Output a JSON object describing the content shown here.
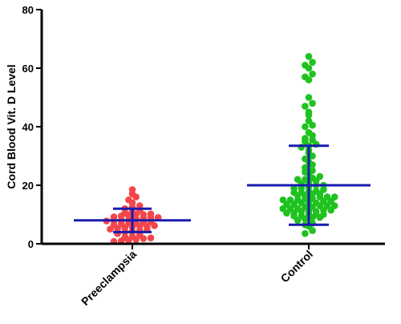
{
  "chart_data": {
    "type": "scatter",
    "ylabel": "Cord Blood Vit. D Level",
    "xlabel": "",
    "ylim": [
      0,
      80
    ],
    "yticks": [
      0,
      20,
      40,
      60,
      80
    ],
    "grid": false,
    "categories": [
      "Preeclampsia",
      "Control"
    ],
    "series": [
      {
        "category": "Preeclampsia",
        "color": "#f2464b",
        "mean": 8,
        "sd_low": 4,
        "sd_high": 12,
        "values": [
          0.8,
          1.0,
          1.2,
          1.5,
          1.8,
          2.0,
          2.2,
          2.5,
          3.0,
          3.5,
          4.0,
          4.2,
          4.5,
          4.8,
          5.0,
          5.2,
          5.5,
          5.8,
          6.0,
          6.0,
          6.2,
          6.5,
          6.8,
          7.0,
          7.0,
          7.2,
          7.5,
          7.8,
          8.0,
          8.0,
          8.2,
          8.5,
          8.8,
          9.0,
          9.0,
          9.2,
          9.5,
          9.8,
          10.0,
          10.0,
          10.2,
          10.5,
          11.0,
          11.5,
          12.0,
          12.5,
          13.0,
          14.0,
          15.0,
          16.0,
          17.0,
          18.5
        ]
      },
      {
        "category": "Control",
        "color": "#1fc21f",
        "mean": 20,
        "sd_low": 6.5,
        "sd_high": 33.5,
        "values": [
          3.5,
          4.5,
          6.0,
          6.5,
          7.0,
          8.0,
          8.5,
          9.0,
          9.0,
          9.5,
          9.5,
          10.0,
          10.0,
          10.0,
          10.5,
          10.5,
          11.0,
          11.0,
          11.0,
          11.5,
          11.5,
          12.0,
          12.0,
          12.0,
          12.5,
          12.5,
          13.0,
          13.0,
          13.0,
          13.5,
          13.5,
          14.0,
          14.0,
          14.0,
          14.5,
          14.5,
          15.0,
          15.0,
          15.0,
          15.5,
          15.5,
          16.0,
          16.0,
          16.0,
          16.5,
          16.5,
          17.0,
          17.0,
          17.5,
          17.5,
          18.0,
          18.0,
          18.5,
          19.0,
          19.0,
          19.5,
          20.0,
          20.0,
          20.5,
          21.0,
          21.5,
          22.0,
          22.0,
          22.5,
          23.0,
          24.0,
          24.5,
          25.0,
          26.0,
          27.0,
          28.0,
          29.0,
          30.0,
          31.0,
          32.0,
          33.0,
          33.5,
          34.0,
          35.0,
          35.5,
          36.0,
          37.0,
          38.0,
          40.0,
          40.5,
          42.0,
          44.0,
          45.0,
          47.0,
          48.0,
          50.0,
          56.0,
          57.0,
          58.0,
          60.0,
          61.0,
          62.0,
          64.0
        ]
      }
    ]
  }
}
